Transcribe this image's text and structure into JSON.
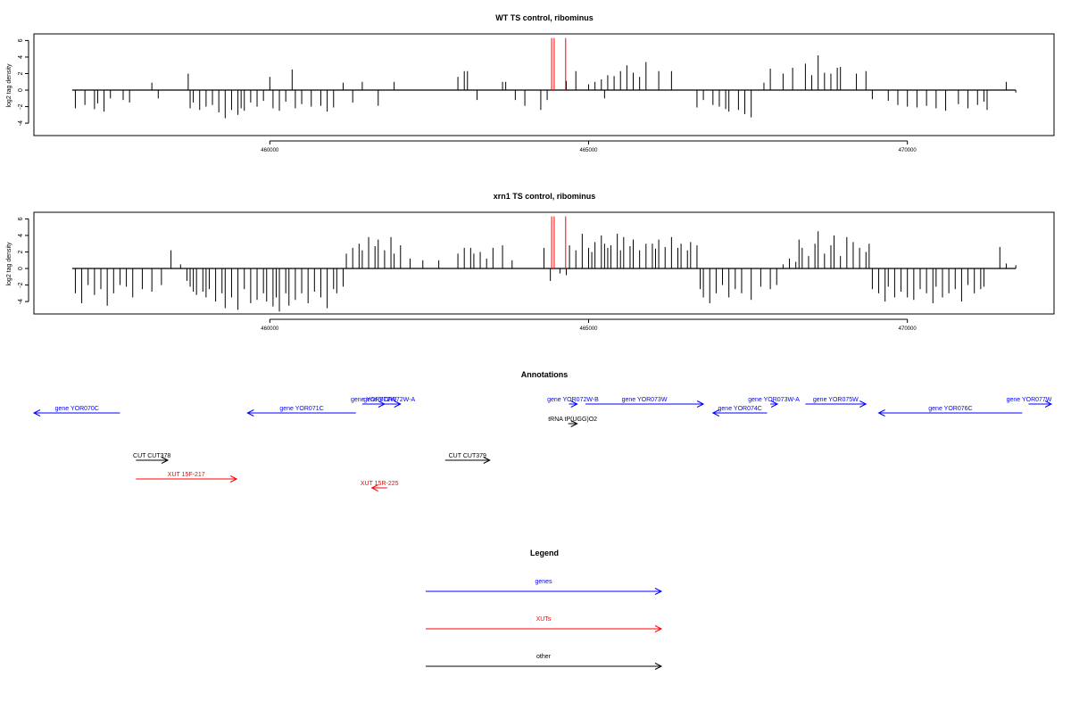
{
  "chart_data": [
    {
      "type": "bar",
      "title": "WT TS control, ribominus",
      "xlabel": "",
      "ylabel": "log2 tag density",
      "xlim": [
        456300,
        472300
      ],
      "ylim": [
        -5.5,
        6.8
      ],
      "y_ticks": [
        -4,
        -2,
        0,
        2,
        4,
        6
      ],
      "x_ticks": [
        460000,
        465000,
        470000
      ],
      "x_tick_labels": [
        "460000",
        "465000",
        "470000"
      ],
      "y_tick_labels": [
        "-4",
        "-2",
        "0",
        "2",
        "4",
        "6"
      ],
      "baseline": {
        "from": 456900,
        "to": 471700
      },
      "series": [
        {
          "color": "#000000",
          "x": [
            456950,
            457100,
            457250,
            457300,
            457400,
            457500,
            457700,
            457800,
            458150,
            458250,
            458720,
            458750,
            458800,
            458900,
            459000,
            459100,
            459200,
            459300,
            459400,
            459500,
            459550,
            459600,
            459700,
            459800,
            459900,
            460000,
            460050,
            460150,
            460250,
            460350,
            460400,
            460500,
            460650,
            460800,
            460900,
            461000,
            461150,
            461300,
            461450,
            461700,
            461950,
            462950,
            463050,
            463100,
            463250,
            463650,
            463700,
            463850,
            464000,
            464250,
            464350,
            464650,
            464800,
            465000,
            465100,
            465200,
            465250,
            465300,
            465400,
            465500,
            465600,
            465700,
            465800,
            465900,
            466100,
            466300,
            466700,
            466800,
            466950,
            467050,
            467150,
            467200,
            467350,
            467450,
            467550,
            467750,
            467850,
            468050,
            468200,
            468400,
            468500,
            468600,
            468700,
            468800,
            468900,
            468950,
            469200,
            469350,
            469450,
            469700,
            469850,
            470000,
            470150,
            470300,
            470450,
            470600,
            470800,
            470950,
            471100,
            471200,
            471250,
            471550,
            471700
          ],
          "values": [
            -2.2,
            -1.8,
            -2.3,
            -1.6,
            -2.6,
            -1.0,
            -1.2,
            -1.5,
            0.9,
            -1.0,
            2.0,
            -2.2,
            -1.5,
            -2.4,
            -2.0,
            -1.8,
            -2.7,
            -3.4,
            -2.4,
            -3.0,
            -2.2,
            -2.5,
            -1.5,
            -2.0,
            -1.3,
            1.6,
            -2.2,
            -2.5,
            -1.4,
            2.5,
            -2.2,
            -1.7,
            -2.0,
            -1.9,
            -2.6,
            -2.1,
            0.9,
            -1.5,
            1.0,
            -1.9,
            1.0,
            1.6,
            2.3,
            2.3,
            -1.2,
            1.0,
            1.0,
            -1.2,
            -1.9,
            -2.4,
            -1.2,
            1.1,
            2.3,
            0.7,
            1.0,
            1.3,
            -1.0,
            1.8,
            1.7,
            2.3,
            3.0,
            2.1,
            1.6,
            3.4,
            2.3,
            2.3,
            -2.1,
            -1.2,
            -1.8,
            -2.0,
            -2.3,
            -2.6,
            -2.4,
            -2.9,
            -3.3,
            0.9,
            2.6,
            2.0,
            2.7,
            3.2,
            1.8,
            4.2,
            2.1,
            2.0,
            2.7,
            2.8,
            2.0,
            2.3,
            -1.1,
            -1.3,
            -1.8,
            -2.0,
            -2.1,
            -1.9,
            -2.2,
            -2.5,
            -1.7,
            -2.2,
            -1.8,
            -1.4,
            -2.4,
            1.0,
            -0.3
          ]
        },
        {
          "color": "#ff0000",
          "x": [
            464420,
            464460,
            464640
          ],
          "values": [
            6.3,
            6.3,
            6.3
          ]
        }
      ]
    },
    {
      "type": "bar",
      "title": "xrn1 TS control, ribominus",
      "xlabel": "",
      "ylabel": "log2 tag density",
      "xlim": [
        456300,
        472300
      ],
      "ylim": [
        -5.5,
        6.8
      ],
      "y_ticks": [
        -4,
        -2,
        0,
        2,
        4,
        6
      ],
      "x_ticks": [
        460000,
        465000,
        470000
      ],
      "x_tick_labels": [
        "460000",
        "465000",
        "470000"
      ],
      "y_tick_labels": [
        "-4",
        "-2",
        "0",
        "2",
        "4",
        "6"
      ],
      "baseline": {
        "from": 456900,
        "to": 471700
      },
      "series": [
        {
          "color": "#000000",
          "x": [
            456950,
            457050,
            457150,
            457250,
            457350,
            457450,
            457550,
            457650,
            457750,
            457850,
            458000,
            458150,
            458300,
            458450,
            458600,
            458700,
            458750,
            458800,
            458850,
            458950,
            459000,
            459050,
            459150,
            459250,
            459300,
            459400,
            459500,
            459600,
            459700,
            459800,
            459900,
            459950,
            460050,
            460100,
            460150,
            460250,
            460300,
            460400,
            460500,
            460600,
            460700,
            460800,
            460900,
            461000,
            461050,
            461150,
            461200,
            461300,
            461400,
            461450,
            461550,
            461650,
            461700,
            461800,
            461900,
            461950,
            462050,
            462200,
            462400,
            462650,
            462950,
            463050,
            463150,
            463200,
            463300,
            463400,
            463500,
            463650,
            463800,
            464300,
            464400,
            464550,
            464650,
            464700,
            464800,
            464900,
            465000,
            465050,
            465100,
            465200,
            465250,
            465300,
            465350,
            465450,
            465500,
            465550,
            465650,
            465700,
            465800,
            465900,
            466000,
            466050,
            466100,
            466200,
            466300,
            466400,
            466450,
            466550,
            466600,
            466700,
            466750,
            466800,
            466900,
            467000,
            467100,
            467200,
            467300,
            467400,
            467550,
            467700,
            467850,
            467950,
            468050,
            468150,
            468250,
            468300,
            468350,
            468450,
            468550,
            468600,
            468700,
            468800,
            468850,
            468950,
            469050,
            469150,
            469250,
            469350,
            469400,
            469450,
            469550,
            469650,
            469700,
            469800,
            469900,
            470000,
            470100,
            470200,
            470300,
            470400,
            470450,
            470550,
            470650,
            470750,
            470850,
            470950,
            471050,
            471150,
            471200,
            471450,
            471550,
            471700
          ],
          "values": [
            -3.0,
            -4.2,
            -2.0,
            -3.2,
            -2.5,
            -4.5,
            -3.0,
            -2.0,
            -2.2,
            -3.5,
            -2.5,
            -2.8,
            -2.0,
            2.2,
            0.5,
            -1.5,
            -2.2,
            -2.8,
            -3.2,
            -2.8,
            -3.5,
            -2.5,
            -4.0,
            -3.0,
            -4.8,
            -3.5,
            -5.0,
            -2.5,
            -4.2,
            -3.8,
            -3.0,
            -4.0,
            -4.6,
            -3.5,
            -5.2,
            -3.0,
            -4.5,
            -3.8,
            -3.0,
            -4.2,
            -2.8,
            -3.5,
            -4.8,
            -2.5,
            -3.0,
            -2.2,
            1.8,
            2.5,
            3.0,
            2.2,
            3.8,
            2.7,
            3.5,
            2.2,
            3.8,
            1.8,
            2.8,
            1.2,
            1.0,
            1.0,
            1.8,
            2.5,
            2.5,
            1.8,
            2.0,
            1.2,
            2.5,
            2.8,
            1.0,
            2.5,
            -1.5,
            -0.6,
            -0.8,
            2.8,
            2.2,
            4.2,
            2.5,
            2.0,
            3.2,
            4.0,
            3.0,
            2.5,
            2.8,
            4.2,
            2.2,
            3.8,
            2.7,
            3.5,
            2.2,
            3.0,
            3.0,
            2.4,
            3.5,
            2.6,
            3.8,
            2.5,
            3.0,
            2.2,
            3.2,
            2.8,
            -2.5,
            -3.5,
            -4.2,
            -3.0,
            -2.0,
            -3.5,
            -2.5,
            -3.0,
            -3.8,
            -2.2,
            -2.5,
            -2.0,
            0.5,
            1.2,
            0.8,
            3.5,
            2.5,
            1.5,
            3.0,
            4.5,
            1.8,
            2.8,
            4.0,
            1.5,
            3.8,
            3.2,
            2.5,
            2.0,
            3.0,
            -2.5,
            -3.0,
            -4.0,
            -2.2,
            -3.5,
            -2.8,
            -3.5,
            -3.8,
            -2.5,
            -3.0,
            -4.2,
            -2.2,
            -3.5,
            -3.0,
            -2.5,
            -4.0,
            -2.0,
            -3.0,
            -2.5,
            -2.2,
            2.6,
            0.6,
            0.4
          ]
        },
        {
          "color": "#ff0000",
          "x": [
            464420,
            464460,
            464640
          ],
          "values": [
            6.3,
            6.3,
            6.3
          ]
        }
      ]
    }
  ],
  "annotations": {
    "title": "Annotations",
    "items": [
      {
        "label": "gene YOR070C",
        "start": 456300,
        "end": 457650,
        "dir": "-",
        "row": 1,
        "color": "#0000ff"
      },
      {
        "label": "gene YOR071C",
        "start": 459650,
        "end": 461350,
        "dir": "-",
        "row": 1,
        "color": "#0000ff"
      },
      {
        "label": "gene YOR072W",
        "start": 461450,
        "end": 461800,
        "dir": "+",
        "row": 0,
        "color": "#0000ff"
      },
      {
        "label": "gene YOR072W-A",
        "start": 461700,
        "end": 462050,
        "dir": "+",
        "row": 0,
        "color": "#0000ff"
      },
      {
        "label": "gene YOR072W-B",
        "start": 464690,
        "end": 464820,
        "dir": "+",
        "row": 0,
        "color": "#0000ff"
      },
      {
        "label": "gene YOR073W",
        "start": 464950,
        "end": 466800,
        "dir": "+",
        "row": 0,
        "color": "#0000ff"
      },
      {
        "label": "gene YOR073W-A",
        "start": 467850,
        "end": 467860,
        "dir": "+",
        "row": 0,
        "color": "#0000ff"
      },
      {
        "label": "gene YOR074C",
        "start": 466950,
        "end": 467800,
        "dir": "-",
        "row": 1,
        "color": "#0000ff"
      },
      {
        "label": "gene YOR075W",
        "start": 468400,
        "end": 469350,
        "dir": "+",
        "row": 0,
        "color": "#0000ff"
      },
      {
        "label": "gene YOR076C",
        "start": 469550,
        "end": 471800,
        "dir": "-",
        "row": 1,
        "color": "#0000ff"
      },
      {
        "label": "gene YOR077W",
        "start": 471900,
        "end": 472300,
        "dir": "+",
        "row": 0,
        "color": "#0000ff"
      },
      {
        "label": "tRNA tP(UGG)O2",
        "start": 464680,
        "end": 464820,
        "dir": "+",
        "row": 2,
        "color": "#000000"
      },
      {
        "label": "CUT CUT378",
        "start": 457900,
        "end": 458400,
        "dir": "+",
        "row": 3,
        "color": "#000000"
      },
      {
        "label": "CUT CUT379",
        "start": 462750,
        "end": 463450,
        "dir": "+",
        "row": 3,
        "color": "#000000"
      },
      {
        "label": "XUT 15F-217",
        "start": 457900,
        "end": 459480,
        "dir": "+",
        "row": 4,
        "color": "#ff0000"
      },
      {
        "label": "XUT 15R-225",
        "start": 461600,
        "end": 461840,
        "dir": "-",
        "row": 5,
        "color": "#ff0000"
      }
    ]
  },
  "legend": {
    "title": "Legend",
    "entries": [
      {
        "label": "genes",
        "color": "#0000ff"
      },
      {
        "label": "XUTs",
        "color": "#ff0000"
      },
      {
        "label": "other",
        "color": "#000000"
      }
    ]
  }
}
